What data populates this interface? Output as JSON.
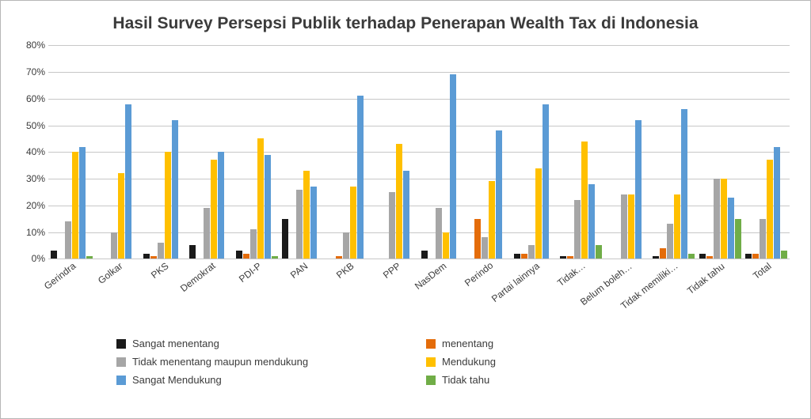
{
  "title": "Hasil Survey Persepsi Publik terhadap Penerapan Wealth Tax di Indonesia",
  "title_fontsize": 21,
  "background_color": "#ffffff",
  "grid_color": "#c7c7c7",
  "text_color": "#3b3b3b",
  "chart": {
    "type": "grouped-bar",
    "ymax": 80,
    "ytick_step": 10,
    "yticks": [
      "0%",
      "10%",
      "20%",
      "30%",
      "40%",
      "50%",
      "60%",
      "70%",
      "80%"
    ],
    "series": [
      {
        "key": "sangat_menentang",
        "label": "Sangat menentang",
        "color": "#1a1a1a"
      },
      {
        "key": "menentang",
        "label": "menentang",
        "color": "#e46c0a"
      },
      {
        "key": "netral",
        "label": "Tidak menentang maupun mendukung",
        "color": "#a6a6a6"
      },
      {
        "key": "mendukung",
        "label": "Mendukung",
        "color": "#ffc000"
      },
      {
        "key": "sangat_mendukung",
        "label": "Sangat Mendukung",
        "color": "#5b9bd5"
      },
      {
        "key": "tidak_tahu",
        "label": "Tidak tahu",
        "color": "#70ad47"
      }
    ],
    "categories": [
      {
        "label": "Gerindra",
        "values": {
          "sangat_menentang": 3,
          "menentang": 0,
          "netral": 14,
          "mendukung": 40,
          "sangat_mendukung": 42,
          "tidak_tahu": 1
        }
      },
      {
        "label": "Golkar",
        "values": {
          "sangat_menentang": 0,
          "menentang": 0,
          "netral": 10,
          "mendukung": 32,
          "sangat_mendukung": 58,
          "tidak_tahu": 0
        }
      },
      {
        "label": "PKS",
        "values": {
          "sangat_menentang": 2,
          "menentang": 1,
          "netral": 6,
          "mendukung": 40,
          "sangat_mendukung": 52,
          "tidak_tahu": 0
        }
      },
      {
        "label": "Demokrat",
        "values": {
          "sangat_menentang": 5,
          "menentang": 0,
          "netral": 19,
          "mendukung": 37,
          "sangat_mendukung": 40,
          "tidak_tahu": 0
        }
      },
      {
        "label": "PDI-P",
        "values": {
          "sangat_menentang": 3,
          "menentang": 2,
          "netral": 11,
          "mendukung": 45,
          "sangat_mendukung": 39,
          "tidak_tahu": 1
        }
      },
      {
        "label": "PAN",
        "values": {
          "sangat_menentang": 15,
          "menentang": 0,
          "netral": 26,
          "mendukung": 33,
          "sangat_mendukung": 27,
          "tidak_tahu": 0
        }
      },
      {
        "label": "PKB",
        "values": {
          "sangat_menentang": 0,
          "menentang": 1,
          "netral": 10,
          "mendukung": 27,
          "sangat_mendukung": 61,
          "tidak_tahu": 0
        }
      },
      {
        "label": "PPP",
        "values": {
          "sangat_menentang": 0,
          "menentang": 0,
          "netral": 25,
          "mendukung": 43,
          "sangat_mendukung": 33,
          "tidak_tahu": 0
        }
      },
      {
        "label": "NasDem",
        "values": {
          "sangat_menentang": 3,
          "menentang": 0,
          "netral": 19,
          "mendukung": 10,
          "sangat_mendukung": 69,
          "tidak_tahu": 0
        }
      },
      {
        "label": "Perindo",
        "values": {
          "sangat_menentang": 0,
          "menentang": 15,
          "netral": 8,
          "mendukung": 29,
          "sangat_mendukung": 48,
          "tidak_tahu": 0
        }
      },
      {
        "label": "Partai lainnya",
        "values": {
          "sangat_menentang": 2,
          "menentang": 2,
          "netral": 5,
          "mendukung": 34,
          "sangat_mendukung": 58,
          "tidak_tahu": 0
        }
      },
      {
        "label": "Tidak…",
        "values": {
          "sangat_menentang": 1,
          "menentang": 1,
          "netral": 22,
          "mendukung": 44,
          "sangat_mendukung": 28,
          "tidak_tahu": 5
        }
      },
      {
        "label": "Belum boleh…",
        "values": {
          "sangat_menentang": 0,
          "menentang": 0,
          "netral": 24,
          "mendukung": 24,
          "sangat_mendukung": 52,
          "tidak_tahu": 0
        }
      },
      {
        "label": "Tidak memiliki…",
        "values": {
          "sangat_menentang": 1,
          "menentang": 4,
          "netral": 13,
          "mendukung": 24,
          "sangat_mendukung": 56,
          "tidak_tahu": 2
        }
      },
      {
        "label": "Tidak tahu",
        "values": {
          "sangat_menentang": 2,
          "menentang": 1,
          "netral": 30,
          "mendukung": 30,
          "sangat_mendukung": 23,
          "tidak_tahu": 15
        }
      },
      {
        "label": "Total",
        "values": {
          "sangat_menentang": 2,
          "menentang": 2,
          "netral": 15,
          "mendukung": 37,
          "sangat_mendukung": 42,
          "tidak_tahu": 3
        }
      }
    ]
  }
}
